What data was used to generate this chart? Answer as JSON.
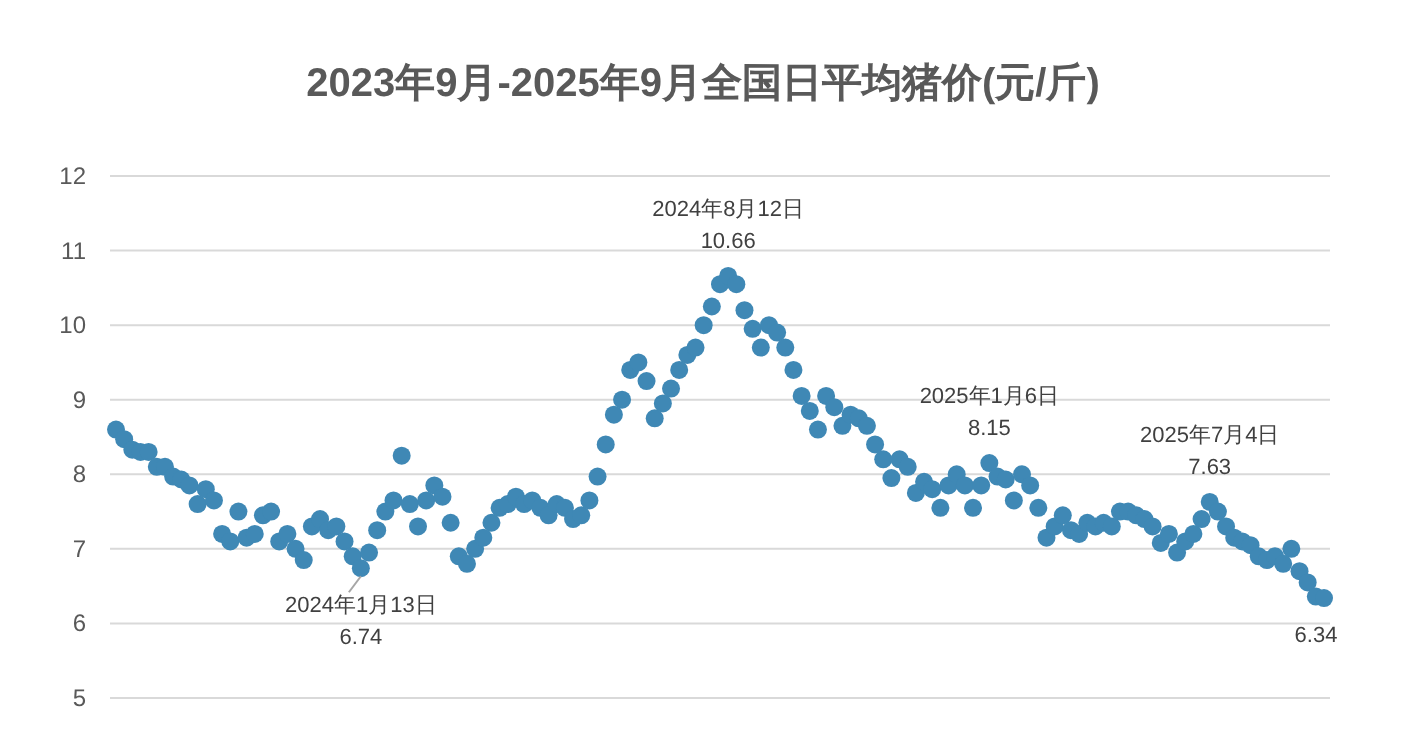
{
  "chart_data": {
    "type": "scatter",
    "title": "2023年9月-2025年9月全国日平均猪价(元/斤)",
    "categories": [
      null,
      null,
      null,
      null,
      null,
      null,
      null,
      null,
      null,
      null,
      null,
      null,
      null,
      null,
      null,
      null,
      null,
      null,
      null,
      null,
      null,
      null,
      null,
      null,
      null,
      null,
      null,
      null,
      null,
      null,
      null,
      null,
      null,
      null,
      null,
      null,
      null,
      null,
      null,
      null,
      null,
      null,
      null,
      null,
      null,
      null,
      null,
      null,
      null,
      null,
      null,
      null,
      null,
      null,
      null,
      null,
      null,
      null,
      null,
      null,
      null,
      null,
      null,
      null,
      null,
      null,
      null,
      null,
      null,
      null,
      null,
      null,
      null,
      null,
      null,
      null,
      null,
      null,
      null,
      null,
      null,
      null,
      null,
      null,
      null,
      null,
      null,
      null,
      null,
      null,
      null,
      null,
      null,
      null,
      null,
      null,
      null,
      null,
      null,
      null,
      null,
      null,
      null,
      null,
      null,
      null,
      null,
      null,
      null,
      null,
      null,
      null,
      null,
      null,
      null,
      null,
      null,
      null,
      null,
      null,
      null,
      null,
      null,
      null,
      null,
      null,
      null,
      null,
      null,
      null,
      null,
      null,
      null,
      null,
      null,
      null,
      null,
      null,
      null,
      null,
      null,
      null,
      null,
      null,
      null,
      null,
      null,
      null,
      null
    ],
    "series": [
      {
        "color": "#3f88b5",
        "values": [
          8.6,
          8.47,
          8.33,
          8.3,
          8.3,
          8.1,
          8.1,
          7.97,
          7.93,
          7.85,
          7.6,
          7.8,
          7.65,
          7.2,
          7.1,
          7.5,
          7.15,
          7.2,
          7.45,
          7.5,
          7.1,
          7.2,
          7.0,
          6.85,
          7.3,
          7.4,
          7.25,
          7.3,
          7.1,
          6.9,
          6.74,
          6.95,
          7.25,
          7.5,
          7.65,
          8.25,
          7.6,
          7.3,
          7.65,
          7.85,
          7.7,
          7.35,
          6.9,
          6.8,
          7.0,
          7.15,
          7.35,
          7.55,
          7.6,
          7.7,
          7.6,
          7.65,
          7.55,
          7.45,
          7.6,
          7.55,
          7.4,
          7.45,
          7.65,
          7.97,
          8.4,
          8.8,
          9.0,
          9.4,
          9.5,
          9.25,
          8.75,
          8.95,
          9.15,
          9.4,
          9.6,
          9.7,
          10.0,
          10.25,
          10.55,
          10.66,
          10.55,
          10.2,
          9.95,
          9.7,
          10.0,
          9.9,
          9.7,
          9.4,
          9.05,
          8.85,
          8.6,
          9.05,
          8.9,
          8.65,
          8.8,
          8.75,
          8.65,
          8.4,
          8.2,
          7.95,
          8.2,
          8.1,
          7.75,
          7.9,
          7.8,
          7.55,
          7.85,
          8.0,
          7.85,
          7.55,
          7.85,
          8.15,
          7.97,
          7.93,
          7.65,
          8.0,
          7.85,
          7.55,
          7.15,
          7.3,
          7.45,
          7.25,
          7.2,
          7.35,
          7.3,
          7.35,
          7.3,
          7.5,
          7.5,
          7.45,
          7.4,
          7.3,
          7.08,
          7.2,
          6.95,
          7.1,
          7.2,
          7.4,
          7.63,
          7.5,
          7.3,
          7.15,
          7.1,
          7.05,
          6.9,
          6.85,
          6.9,
          6.8,
          7.0,
          6.7,
          6.55,
          6.36,
          6.34
        ],
        "value_labels": [
          null,
          null,
          null,
          null,
          null,
          null,
          null,
          null,
          null,
          null,
          null,
          null,
          null,
          null,
          null,
          null,
          null,
          null,
          null,
          null,
          null,
          null,
          null,
          null,
          null,
          null,
          null,
          null,
          null,
          null,
          "2024年1月13日\n6.74",
          null,
          null,
          null,
          null,
          null,
          null,
          null,
          null,
          null,
          null,
          null,
          null,
          null,
          null,
          null,
          null,
          null,
          null,
          null,
          null,
          null,
          null,
          null,
          null,
          null,
          null,
          null,
          null,
          null,
          null,
          null,
          null,
          null,
          null,
          null,
          null,
          null,
          null,
          null,
          null,
          null,
          null,
          null,
          null,
          "2024年8月12日\n10.66",
          null,
          null,
          null,
          null,
          null,
          null,
          null,
          null,
          null,
          null,
          null,
          null,
          null,
          null,
          null,
          null,
          null,
          null,
          null,
          null,
          null,
          null,
          null,
          null,
          null,
          null,
          null,
          null,
          null,
          null,
          null,
          "2025年1月6日\n8.15",
          null,
          null,
          null,
          null,
          null,
          null,
          null,
          null,
          null,
          null,
          null,
          null,
          null,
          null,
          null,
          null,
          null,
          null,
          null,
          null,
          null,
          null,
          null,
          null,
          null,
          null,
          "2025年7月4日\n7.63",
          null,
          null,
          null,
          null,
          null,
          null,
          null,
          null,
          null,
          null,
          null,
          null,
          null,
          "6.34"
        ]
      }
    ],
    "ylim": [
      5,
      12
    ],
    "yticks": [
      5,
      6,
      7,
      8,
      9,
      10,
      11,
      12
    ],
    "grid": "y",
    "marker": "circle"
  }
}
